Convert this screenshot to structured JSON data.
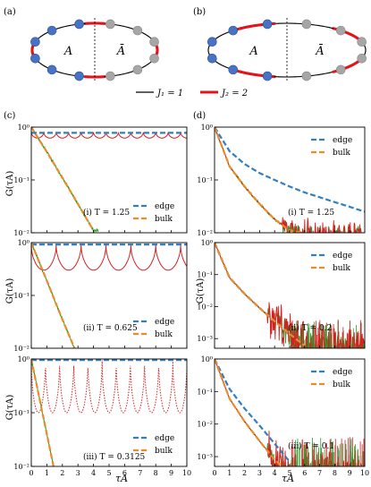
{
  "panel_labels": [
    "(a)",
    "(b)",
    "(c)",
    "(d)"
  ],
  "ring_labels": {
    "a": "A",
    "abar": "Ā"
  },
  "legend_coupling": {
    "j1": "J₁ = 1",
    "j2": "J₂ = 2"
  },
  "axis_labels": {
    "y": "G(τA)",
    "x": "τA"
  },
  "x_ticks": [
    "0",
    "1",
    "2",
    "3",
    "4",
    "5",
    "6",
    "7",
    "8",
    "9",
    "10"
  ],
  "colors": {
    "edge": "#2f7fc1",
    "bulk": "#f08a24",
    "red": "#d61f1f",
    "green": "#2a9a2a",
    "blue_site": "#4a72c4",
    "gray_site": "#a6a6a6",
    "j2_bond": "#e0141a"
  },
  "chart_data": [
    {
      "type": "line",
      "panel": "(c)",
      "annotation": "(i) T = 1.25",
      "xlim": [
        0,
        10
      ],
      "ylim": [
        0.01,
        1
      ],
      "yscale": "log",
      "y_ticks": [
        "10⁰",
        "10⁻¹",
        "10⁻²"
      ],
      "legend": [
        "edge",
        "bulk"
      ],
      "series": [
        {
          "name": "edge",
          "x": [
            0,
            10
          ],
          "y": [
            0.78,
            0.78
          ]
        },
        {
          "name": "bulk",
          "x": [
            0,
            1,
            2,
            3,
            4
          ],
          "y": [
            1.0,
            0.34,
            0.11,
            0.035,
            0.011
          ]
        }
      ],
      "oscillation": {
        "period": 0.8,
        "max": 0.8,
        "min": 0.62
      }
    },
    {
      "type": "line",
      "panel": "(c)",
      "annotation": "(ii) T = 0.625",
      "xlim": [
        0,
        10
      ],
      "ylim": [
        0.01,
        1
      ],
      "yscale": "log",
      "y_ticks": [
        "10⁰",
        "10⁻¹",
        "10⁻²"
      ],
      "legend": [
        "edge",
        "bulk"
      ],
      "series": [
        {
          "name": "edge",
          "x": [
            0,
            10
          ],
          "y": [
            0.92,
            0.92
          ]
        },
        {
          "name": "bulk",
          "x": [
            0,
            1,
            2,
            3
          ],
          "y": [
            1.0,
            0.19,
            0.035,
            0.007
          ]
        }
      ],
      "oscillation": {
        "period": 1.6,
        "max": 0.9,
        "min": 0.3
      }
    },
    {
      "type": "line",
      "panel": "(c)",
      "annotation": "(iii) T = 0.3125",
      "xlim": [
        0,
        10
      ],
      "ylim": [
        0.01,
        1
      ],
      "yscale": "log",
      "y_ticks": [
        "10⁰",
        "10⁻¹",
        "10⁻²"
      ],
      "legend": [
        "edge",
        "bulk"
      ],
      "series": [
        {
          "name": "edge",
          "x": [
            0,
            10
          ],
          "y": [
            0.96,
            0.96
          ]
        },
        {
          "name": "bulk",
          "x": [
            0,
            1,
            1.5
          ],
          "y": [
            1.0,
            0.04,
            0.008
          ]
        }
      ],
      "oscillation": {
        "period": 0.91,
        "max": 0.95,
        "min": 0.1
      }
    },
    {
      "type": "line",
      "panel": "(d)",
      "annotation": "(i) T = 1.25",
      "xlim": [
        0,
        10
      ],
      "ylim": [
        0.01,
        1
      ],
      "yscale": "log",
      "y_ticks": [
        "10⁰",
        "10⁻¹",
        "10⁻²"
      ],
      "legend": [
        "edge",
        "bulk"
      ],
      "series": [
        {
          "name": "edge",
          "x": [
            0,
            1,
            2,
            3,
            4,
            5,
            6,
            7,
            8,
            9,
            10
          ],
          "y": [
            1.0,
            0.35,
            0.2,
            0.135,
            0.1,
            0.075,
            0.058,
            0.047,
            0.038,
            0.031,
            0.025
          ]
        },
        {
          "name": "bulk",
          "x": [
            0,
            1,
            2,
            3,
            4,
            5,
            6
          ],
          "y": [
            1.0,
            0.18,
            0.075,
            0.035,
            0.018,
            0.011,
            0.01
          ]
        }
      ],
      "oscillation": null
    },
    {
      "type": "line",
      "panel": "(d)",
      "annotation": "(ii) T = 0.2",
      "xlim": [
        0,
        10
      ],
      "ylim": [
        0.0005,
        1
      ],
      "yscale": "log",
      "y_ticks": [
        "10⁰",
        "10⁻¹",
        "10⁻²",
        "10⁻³"
      ],
      "legend": [
        "edge",
        "bulk"
      ],
      "series": [
        {
          "name": "edge",
          "x": [
            0,
            1,
            2,
            3,
            4,
            5,
            6
          ],
          "y": [
            1.0,
            0.08,
            0.025,
            0.009,
            0.0035,
            0.0014,
            0.0006
          ]
        },
        {
          "name": "bulk",
          "x": [
            0,
            1,
            2,
            3,
            4,
            5,
            6
          ],
          "y": [
            1.0,
            0.08,
            0.025,
            0.009,
            0.0035,
            0.0014,
            0.0006
          ]
        }
      ],
      "oscillation": null
    },
    {
      "type": "line",
      "panel": "(d)",
      "annotation": "(iii) T = 0.1",
      "xlim": [
        0,
        10
      ],
      "ylim": [
        0.0005,
        1
      ],
      "yscale": "log",
      "y_ticks": [
        "10⁰",
        "10⁻¹",
        "10⁻²",
        "10⁻³"
      ],
      "legend": [
        "edge",
        "bulk"
      ],
      "series": [
        {
          "name": "edge",
          "x": [
            0,
            1,
            2,
            3,
            4,
            5
          ],
          "y": [
            1.0,
            0.12,
            0.03,
            0.009,
            0.0025,
            0.0007
          ]
        },
        {
          "name": "bulk",
          "x": [
            0,
            1,
            2,
            3,
            4,
            5
          ],
          "y": [
            1.0,
            0.06,
            0.012,
            0.003,
            0.0008,
            0.0003
          ]
        }
      ],
      "oscillation": null
    }
  ]
}
